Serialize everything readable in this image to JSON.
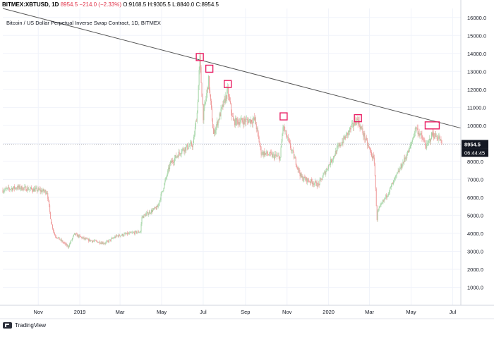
{
  "header": {
    "symbol": "BITMEX:XBTUSD, 1D",
    "last": "8954.5",
    "change": "−214.0 (−2.33%)",
    "open": "O:9168.5",
    "high": "H:9305.5",
    "low": "L:8840.0",
    "close": "C:8954.5"
  },
  "subtitle": "Bitcoin / US Dollar Perpetual Inverse Swap Contract, 1D, BITMEX",
  "price_badge": "8954.5",
  "countdown_badge": "06:44:45",
  "footer_brand": "TradingView",
  "colors": {
    "up": "#a5d6a7",
    "down": "#ef9a9a",
    "trendline": "#555555",
    "highlight_box": "#e91e63",
    "price_badge": "#131722"
  },
  "chart_data": {
    "type": "candlestick",
    "ylim": [
      0,
      16500
    ],
    "y_ticks": [
      "1000.0",
      "2000.0",
      "3000.0",
      "4000.0",
      "5000.0",
      "6000.0",
      "7000.0",
      "8000.0",
      "9000.0",
      "10000.0",
      "11000.0",
      "12000.0",
      "13000.0",
      "14000.0",
      "15000.0",
      "16000.0"
    ],
    "x_ticks": [
      "Nov",
      "2019",
      "Mar",
      "May",
      "Jul",
      "Sep",
      "Nov",
      "2020",
      "Mar",
      "May",
      "Jul"
    ],
    "x_tick_dates": [
      "2018-11-01",
      "2019-01-01",
      "2019-03-01",
      "2019-05-01",
      "2019-07-01",
      "2019-09-01",
      "2019-11-01",
      "2020-01-01",
      "2020-03-01",
      "2020-05-01",
      "2020-07-01"
    ],
    "x_range": [
      "2018-09-10",
      "2020-07-13"
    ],
    "series": [
      {
        "close_path": [
          [
            "2018-09-10",
            6400
          ],
          [
            "2018-10-01",
            6550
          ],
          [
            "2018-11-01",
            6400
          ],
          [
            "2018-11-14",
            6300
          ],
          [
            "2018-11-20",
            4600
          ],
          [
            "2018-11-25",
            3900
          ],
          [
            "2018-12-15",
            3250
          ],
          [
            "2018-12-24",
            3950
          ],
          [
            "2019-01-10",
            3650
          ],
          [
            "2019-02-07",
            3450
          ],
          [
            "2019-02-24",
            3850
          ],
          [
            "2019-03-31",
            4100
          ],
          [
            "2019-04-02",
            4900
          ],
          [
            "2019-04-25",
            5450
          ],
          [
            "2019-05-14",
            7900
          ],
          [
            "2019-05-31",
            8650
          ],
          [
            "2019-06-16",
            8950
          ],
          [
            "2019-06-22",
            10700
          ],
          [
            "2019-06-26",
            13700
          ],
          [
            "2019-07-01",
            10500
          ],
          [
            "2019-07-09",
            12500
          ],
          [
            "2019-07-16",
            9500
          ],
          [
            "2019-08-06",
            11900
          ],
          [
            "2019-08-14",
            10200
          ],
          [
            "2019-09-15",
            10300
          ],
          [
            "2019-09-24",
            8500
          ],
          [
            "2019-10-22",
            8200
          ],
          [
            "2019-10-26",
            9950
          ],
          [
            "2019-11-22",
            7100
          ],
          [
            "2019-12-17",
            6700
          ],
          [
            "2020-01-14",
            8700
          ],
          [
            "2020-02-12",
            10350
          ],
          [
            "2020-02-20",
            9600
          ],
          [
            "2020-03-08",
            8000
          ],
          [
            "2020-03-12",
            4800
          ],
          [
            "2020-03-13",
            5200
          ],
          [
            "2020-03-31",
            6450
          ],
          [
            "2020-04-29",
            8700
          ],
          [
            "2020-05-08",
            9900
          ],
          [
            "2020-05-24",
            8800
          ],
          [
            "2020-05-31",
            9450
          ],
          [
            "2020-06-02",
            9500
          ],
          [
            "2020-06-11",
            9300
          ],
          [
            "2020-06-15",
            8954.5
          ]
        ]
      }
    ],
    "trendline": {
      "from": [
        "2018-09-10",
        16500
      ],
      "to": [
        "2020-07-13",
        9850
      ]
    },
    "current_price_line": 8954.5,
    "highlighted_peaks": [
      [
        "2019-06-26",
        13800
      ],
      [
        "2019-07-10",
        13150
      ],
      [
        "2019-08-06",
        12300
      ],
      [
        "2019-10-27",
        10500
      ],
      [
        "2020-02-13",
        10400
      ],
      [
        "2020-06-01",
        10000
      ]
    ]
  }
}
